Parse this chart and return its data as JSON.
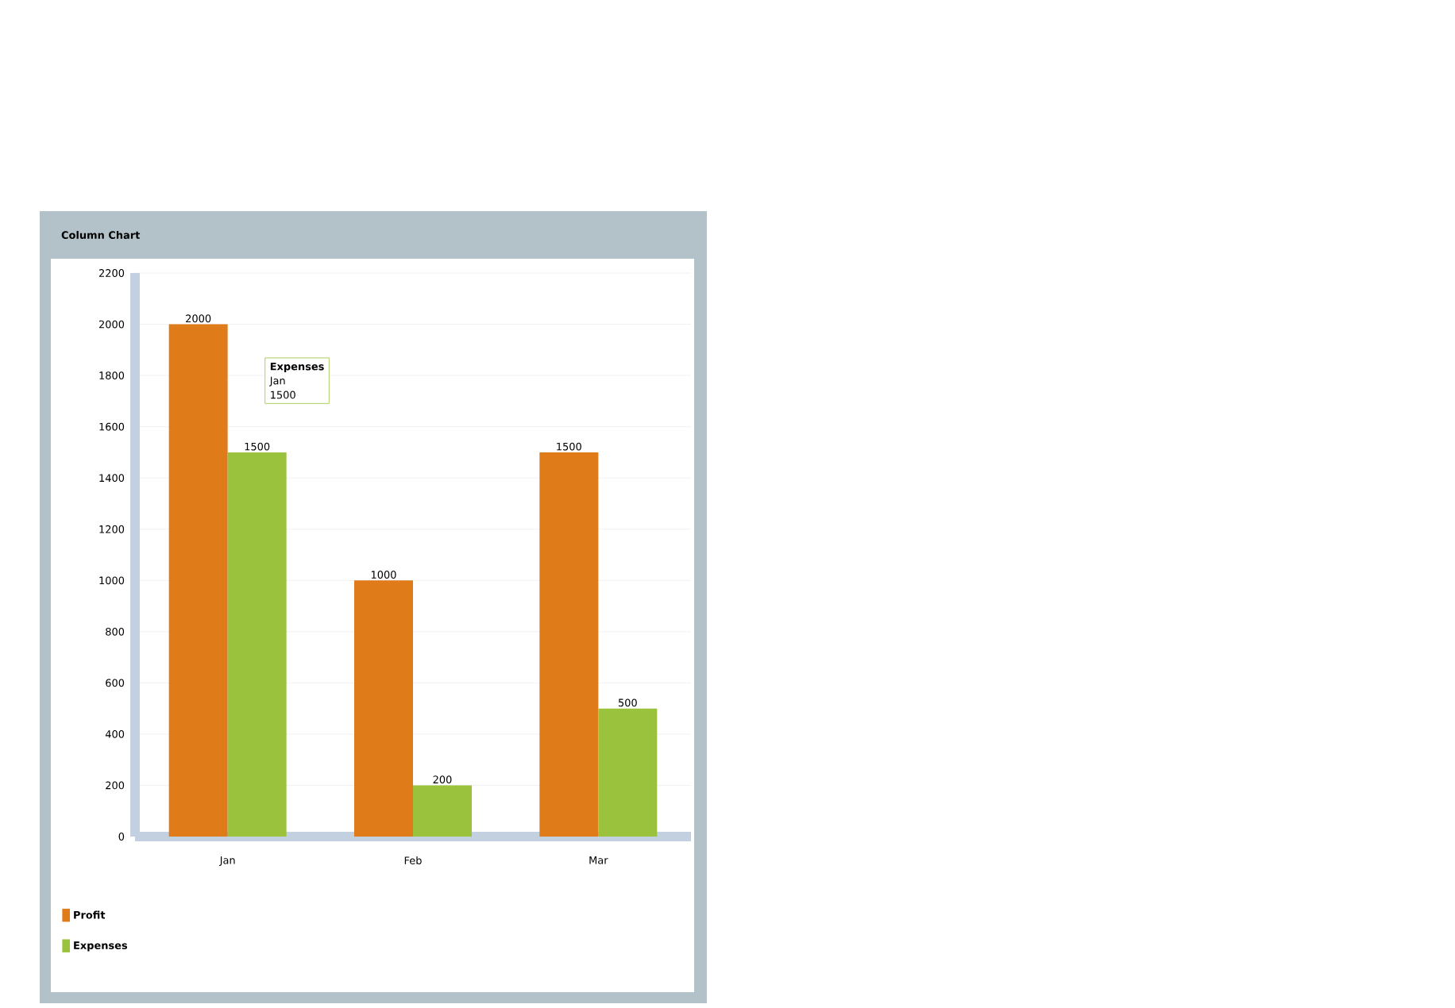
{
  "chart_data": {
    "type": "bar",
    "title": "Column Chart",
    "categories": [
      "Jan",
      "Feb",
      "Mar"
    ],
    "series": [
      {
        "name": "Profit",
        "color": "#e07b1a",
        "values": [
          2000,
          1000,
          1500
        ]
      },
      {
        "name": "Expenses",
        "color": "#9bc23c",
        "values": [
          1500,
          200,
          500
        ]
      }
    ],
    "ylim": [
      0,
      2200
    ],
    "yticks": [
      0,
      200,
      400,
      600,
      800,
      1000,
      1200,
      1400,
      1600,
      1800,
      2000,
      2200
    ],
    "grid": "y",
    "legend": "bottom left",
    "data_labels": true,
    "annotations": [
      "Expenses",
      "Jan",
      "1500"
    ]
  }
}
